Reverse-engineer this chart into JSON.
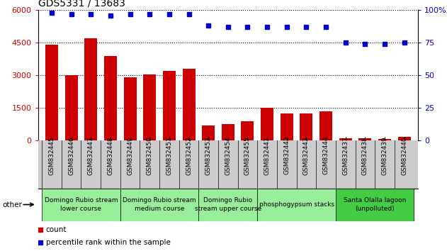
{
  "title": "GDS5331 / 13683",
  "samples": [
    "GSM832445",
    "GSM832446",
    "GSM832447",
    "GSM832448",
    "GSM832449",
    "GSM832450",
    "GSM832451",
    "GSM832452",
    "GSM832453",
    "GSM832454",
    "GSM832455",
    "GSM832441",
    "GSM832442",
    "GSM832443",
    "GSM832444",
    "GSM832437",
    "GSM832438",
    "GSM832439",
    "GSM832440"
  ],
  "counts": [
    4400,
    3000,
    4700,
    3900,
    2900,
    3050,
    3200,
    3300,
    700,
    750,
    900,
    1500,
    1250,
    1250,
    1350,
    100,
    100,
    70,
    180
  ],
  "percentiles": [
    98,
    97,
    97,
    96,
    97,
    97,
    97,
    97,
    88,
    87,
    87,
    87,
    87,
    87,
    87,
    75,
    74,
    74,
    75
  ],
  "bar_color": "#cc0000",
  "dot_color": "#0000cc",
  "ylim_left": [
    0,
    6000
  ],
  "ylim_right": [
    0,
    100
  ],
  "yticks_left": [
    0,
    1500,
    3000,
    4500,
    6000
  ],
  "ytick_labels_left": [
    "0",
    "1500",
    "3000",
    "4500",
    "6000"
  ],
  "yticks_right": [
    0,
    25,
    50,
    75,
    100
  ],
  "ytick_labels_right": [
    "0",
    "25",
    "50",
    "75",
    "100%"
  ],
  "groups": [
    {
      "label": "Domingo Rubio stream\nlower course",
      "start": 0,
      "end": 3,
      "color": "#99ee99"
    },
    {
      "label": "Domingo Rubio stream\nmedium course",
      "start": 4,
      "end": 7,
      "color": "#99ee99"
    },
    {
      "label": "Domingo Rubio\nstream upper course",
      "start": 8,
      "end": 10,
      "color": "#99ee99"
    },
    {
      "label": "phosphogypsum stacks",
      "start": 11,
      "end": 14,
      "color": "#99ee99"
    },
    {
      "label": "Santa Olalla lagoon\n(unpolluted)",
      "start": 15,
      "end": 18,
      "color": "#44cc44"
    }
  ],
  "other_label": "other",
  "legend_count_label": "count",
  "legend_pct_label": "percentile rank within the sample",
  "background_color": "#ffffff",
  "tick_area_color": "#cccccc",
  "title_fontsize": 10,
  "tick_fontsize": 6.5,
  "group_fontsize": 6.5
}
